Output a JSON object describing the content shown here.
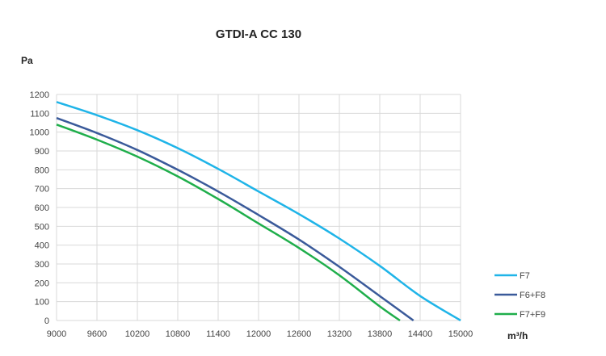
{
  "chart_data": {
    "type": "line",
    "title": "GTDI-A CC 130",
    "ylabel": "Pa",
    "xlabel": "m³/h",
    "xlim": [
      9000,
      15000
    ],
    "ylim": [
      0,
      1200
    ],
    "x_ticks": [
      "9000",
      "9600",
      "10200",
      "10800",
      "11400",
      "12000",
      "12600",
      "13200",
      "13800",
      "14400",
      "15000"
    ],
    "y_ticks": [
      "0",
      "100",
      "200",
      "300",
      "400",
      "500",
      "600",
      "700",
      "800",
      "900",
      "1000",
      "1100",
      "1200"
    ],
    "grid": true,
    "legend_position": "right",
    "series": [
      {
        "name": "F7",
        "color": "#1fb4e8",
        "x": [
          9000,
          9600,
          10200,
          10800,
          11400,
          12000,
          12600,
          13200,
          13800,
          14400,
          15000
        ],
        "y": [
          1160,
          1090,
          1010,
          915,
          805,
          685,
          565,
          435,
          290,
          130,
          0
        ]
      },
      {
        "name": "F6+F8",
        "color": "#3a5a9a",
        "x": [
          9000,
          9600,
          10200,
          10800,
          11400,
          12000,
          12600,
          13200,
          13800,
          14300
        ],
        "y": [
          1075,
          995,
          905,
          800,
          685,
          560,
          430,
          285,
          130,
          0
        ]
      },
      {
        "name": "F7+F9",
        "color": "#1fae4b",
        "x": [
          9000,
          9600,
          10200,
          10800,
          11400,
          12000,
          12600,
          13200,
          13800,
          14100
        ],
        "y": [
          1040,
          960,
          870,
          765,
          645,
          515,
          385,
          240,
          75,
          0
        ]
      }
    ]
  }
}
